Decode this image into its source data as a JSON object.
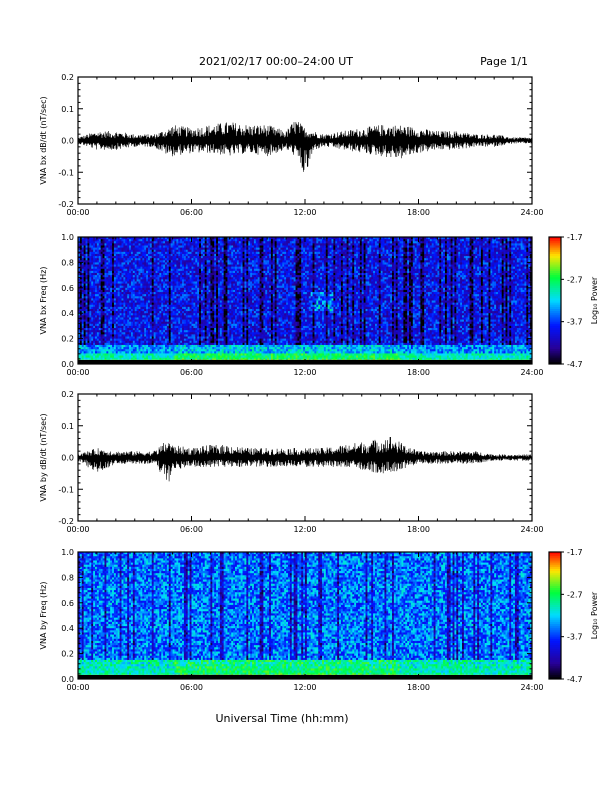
{
  "header": {
    "title": "2021/02/17  00:00–24:00 UT",
    "page": "Page 1/1"
  },
  "footer": {
    "xlabel": "Universal Time (hh:mm)"
  },
  "chart_data": [
    {
      "type": "line",
      "ylabel": "VNA bx dB/dt (nT/sec)",
      "xlim": [
        0,
        24
      ],
      "ylim": [
        -0.2,
        0.2
      ],
      "x_ticks": [
        "00:00",
        "06:00",
        "12:00",
        "18:00",
        "24:00"
      ],
      "y_ticks": [
        "0.2",
        "0.1",
        "0.0",
        "-0.1",
        "-0.2"
      ],
      "envelope": {
        "hours": [
          0,
          1,
          2,
          3,
          4,
          4.8,
          5,
          6,
          7,
          8,
          9,
          10,
          11,
          11.5,
          12,
          12.5,
          13,
          14,
          15,
          16,
          17,
          18,
          19,
          20,
          21,
          22,
          23,
          24
        ],
        "max": [
          0.01,
          0.03,
          0.03,
          0.02,
          0.02,
          0.04,
          0.05,
          0.04,
          0.05,
          0.06,
          0.05,
          0.05,
          0.03,
          0.07,
          0.04,
          0.03,
          0.02,
          0.03,
          0.04,
          0.05,
          0.05,
          0.04,
          0.03,
          0.03,
          0.02,
          0.02,
          0.01,
          0.01
        ],
        "min": [
          -0.01,
          -0.03,
          -0.03,
          -0.02,
          -0.02,
          -0.05,
          -0.05,
          -0.04,
          -0.04,
          -0.05,
          -0.04,
          -0.05,
          -0.03,
          -0.05,
          -0.12,
          -0.03,
          -0.02,
          -0.03,
          -0.04,
          -0.05,
          -0.06,
          -0.04,
          -0.03,
          -0.03,
          -0.02,
          -0.02,
          -0.01,
          -0.01
        ]
      }
    },
    {
      "type": "heatmap",
      "ylabel": "VNA bx Freq (Hz)",
      "xlim": [
        0,
        24
      ],
      "ylim": [
        0,
        1.0
      ],
      "x_ticks": [
        "00:00",
        "06:00",
        "12:00",
        "18:00",
        "24:00"
      ],
      "y_ticks": [
        "1.0",
        "0.8",
        "0.6",
        "0.4",
        "0.2",
        "0.0"
      ],
      "colorbar": {
        "label": "Log₁₀ Power",
        "ticks": [
          "-1.7",
          "-2.7",
          "-3.7",
          "-4.7"
        ],
        "range": [
          -4.7,
          -1.7
        ]
      },
      "description_levels": {
        "background": -3.9,
        "low_freq_band": -2.4
      }
    },
    {
      "type": "line",
      "ylabel": "VNA by dB/dt (nT/sec)",
      "xlim": [
        0,
        24
      ],
      "ylim": [
        -0.2,
        0.2
      ],
      "x_ticks": [
        "00:00",
        "06:00",
        "12:00",
        "18:00",
        "24:00"
      ],
      "y_ticks": [
        "0.2",
        "0.1",
        "0.0",
        "-0.1",
        "-0.2"
      ],
      "envelope": {
        "hours": [
          0,
          1,
          2,
          3,
          4,
          4.8,
          5,
          6,
          7,
          8,
          9,
          10,
          11,
          12,
          13,
          14,
          15,
          16,
          16.5,
          17,
          18,
          19,
          20,
          21,
          22,
          23,
          24
        ],
        "max": [
          0.01,
          0.03,
          0.02,
          0.02,
          0.02,
          0.06,
          0.04,
          0.03,
          0.04,
          0.04,
          0.03,
          0.03,
          0.03,
          0.03,
          0.03,
          0.04,
          0.05,
          0.06,
          0.07,
          0.05,
          0.02,
          0.02,
          0.02,
          0.02,
          0.01,
          0.01,
          0.01
        ],
        "min": [
          -0.01,
          -0.05,
          -0.02,
          -0.02,
          -0.02,
          -0.08,
          -0.04,
          -0.03,
          -0.03,
          -0.03,
          -0.03,
          -0.03,
          -0.03,
          -0.03,
          -0.03,
          -0.03,
          -0.04,
          -0.05,
          -0.05,
          -0.04,
          -0.02,
          -0.02,
          -0.02,
          -0.02,
          -0.01,
          -0.01,
          -0.01
        ]
      }
    },
    {
      "type": "heatmap",
      "ylabel": "VNA by Freq (Hz)",
      "xlim": [
        0,
        24
      ],
      "ylim": [
        0,
        1.0
      ],
      "x_ticks": [
        "00:00",
        "06:00",
        "12:00",
        "18:00",
        "24:00"
      ],
      "y_ticks": [
        "1.0",
        "0.8",
        "0.6",
        "0.4",
        "0.2",
        "0.0"
      ],
      "colorbar": {
        "label": "Log₁₀ Power",
        "ticks": [
          "-1.7",
          "-2.7",
          "-3.7",
          "-4.7"
        ],
        "range": [
          -4.7,
          -1.7
        ]
      },
      "description_levels": {
        "background": -3.5,
        "low_freq_band": -2.4
      }
    }
  ]
}
